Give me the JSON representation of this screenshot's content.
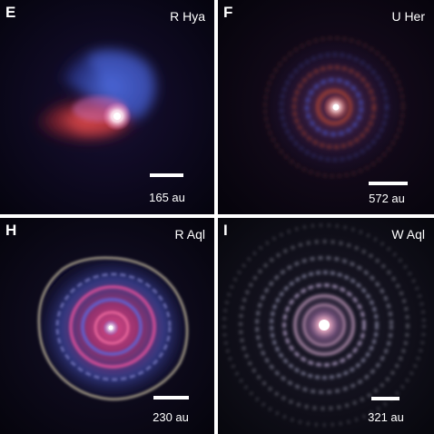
{
  "panels": [
    {
      "letter": "E",
      "star": "R Hya",
      "scale": "165 au"
    },
    {
      "letter": "F",
      "star": "U Her",
      "scale": "572 au"
    },
    {
      "letter": "H",
      "star": "R Aql",
      "scale": "230 au"
    },
    {
      "letter": "I",
      "star": "W Aql",
      "scale": "321 au"
    }
  ],
  "colors": {
    "background": "#05040f",
    "text": "#ffffff",
    "divider": "#ffffff"
  }
}
